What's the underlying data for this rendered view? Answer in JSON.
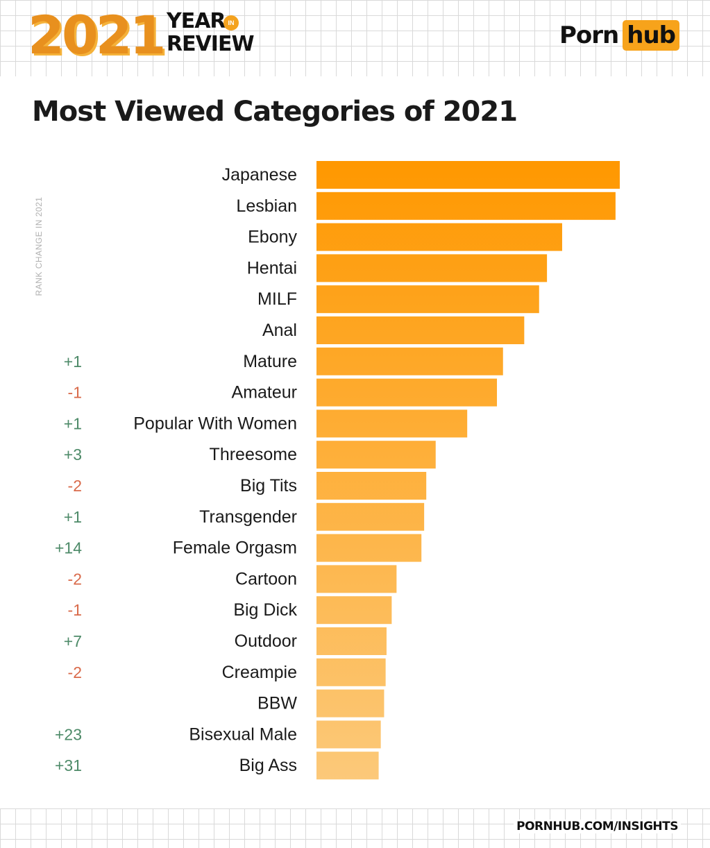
{
  "header": {
    "year": "2021",
    "year_in_review_line1": "YEAR",
    "year_in_review_in": "IN",
    "year_in_review_line2": "REVIEW",
    "brand_part1": "Porn",
    "brand_part2": "hub",
    "brand_color": "#f7a31b"
  },
  "footer": {
    "url": "PORNHUB.COM/INSIGHTS"
  },
  "chart_data": {
    "type": "bar",
    "orientation": "horizontal",
    "title": "Most Viewed Categories of 2021",
    "rank_change_label": "RANK CHANGE IN 2021",
    "categories": [
      "Japanese",
      "Lesbian",
      "Ebony",
      "Hentai",
      "MILF",
      "Anal",
      "Mature",
      "Amateur",
      "Popular With Women",
      "Threesome",
      "Big Tits",
      "Transgender",
      "Female Orgasm",
      "Cartoon",
      "Big Dick",
      "Outdoor",
      "Creampie",
      "BBW",
      "Bisexual Male",
      "Big Ass"
    ],
    "values": [
      100,
      98.6,
      81,
      76,
      73.4,
      68.5,
      61.5,
      59.5,
      49.7,
      39.3,
      36.2,
      35.5,
      34.6,
      26.4,
      24.8,
      23.1,
      22.8,
      22.3,
      21.2,
      20.5
    ],
    "rank_changes": [
      "",
      "",
      "",
      "",
      "",
      "",
      "+1",
      "-1",
      "+1",
      "+3",
      "-2",
      "+1",
      "+14",
      "-2",
      "-1",
      "+7",
      "-2",
      "",
      "+23",
      "+31"
    ],
    "xlim": [
      0,
      100
    ],
    "grid": false,
    "legend": "none",
    "colors": {
      "bar_top": "#ff9800",
      "bar_bottom": "#fcc97a",
      "positive_change": "#4d8a68",
      "negative_change": "#d96a4a",
      "label": "#1a1a1a"
    }
  }
}
